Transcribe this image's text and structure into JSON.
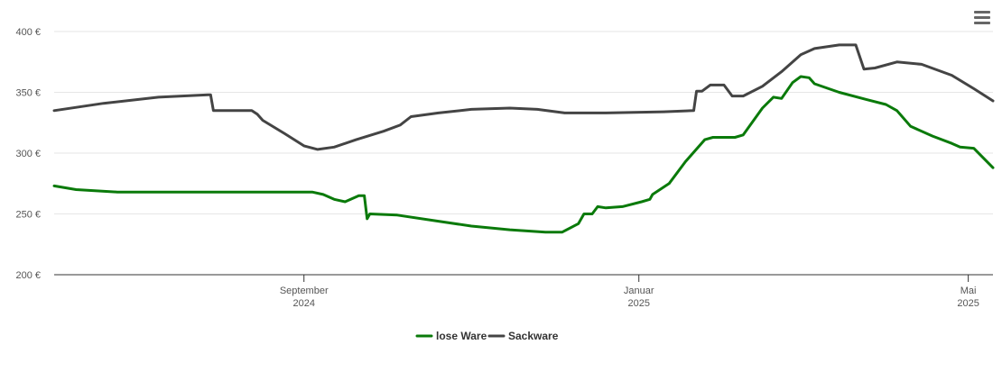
{
  "menu": {
    "icon": "hamburger-menu-icon"
  },
  "chart_data": {
    "type": "line",
    "ylim": [
      200,
      400
    ],
    "y_ticks": [
      200,
      250,
      300,
      350,
      400
    ],
    "y_tick_labels": [
      "200 €",
      "250 €",
      "300 €",
      "350 €",
      "400 €"
    ],
    "x_ticks": [
      {
        "date": "2024-09-01",
        "line1": "September",
        "line2": "2024"
      },
      {
        "date": "2025-01-01",
        "line1": "Januar",
        "line2": "2025"
      },
      {
        "date": "2025-05-01",
        "line1": "Mai",
        "line2": "2025"
      }
    ],
    "xlim": [
      "2024-06-02",
      "2025-05-10"
    ],
    "grid": true,
    "legend_position": "bottom-center",
    "series": [
      {
        "name": "lose Ware",
        "color": "#0a7a0a",
        "points": [
          [
            "2024-06-02",
            273
          ],
          [
            "2024-06-10",
            270
          ],
          [
            "2024-06-25",
            268
          ],
          [
            "2024-07-15",
            268
          ],
          [
            "2024-08-15",
            268
          ],
          [
            "2024-08-28",
            268
          ],
          [
            "2024-09-04",
            268
          ],
          [
            "2024-09-08",
            266
          ],
          [
            "2024-09-12",
            262
          ],
          [
            "2024-09-16",
            260
          ],
          [
            "2024-09-21",
            265
          ],
          [
            "2024-09-23",
            265
          ],
          [
            "2024-09-24",
            246
          ],
          [
            "2024-09-25",
            250
          ],
          [
            "2024-10-05",
            249
          ],
          [
            "2024-10-20",
            244
          ],
          [
            "2024-11-01",
            240
          ],
          [
            "2024-11-15",
            237
          ],
          [
            "2024-11-28",
            235
          ],
          [
            "2024-12-04",
            235
          ],
          [
            "2024-12-10",
            242
          ],
          [
            "2024-12-12",
            250
          ],
          [
            "2024-12-15",
            250
          ],
          [
            "2024-12-17",
            256
          ],
          [
            "2024-12-20",
            255
          ],
          [
            "2024-12-26",
            256
          ],
          [
            "2025-01-02",
            260
          ],
          [
            "2025-01-05",
            262
          ],
          [
            "2025-01-06",
            266
          ],
          [
            "2025-01-12",
            275
          ],
          [
            "2025-01-18",
            293
          ],
          [
            "2025-01-25",
            311
          ],
          [
            "2025-01-28",
            313
          ],
          [
            "2025-02-05",
            313
          ],
          [
            "2025-02-08",
            315
          ],
          [
            "2025-02-15",
            337
          ],
          [
            "2025-02-19",
            346
          ],
          [
            "2025-02-22",
            345
          ],
          [
            "2025-02-26",
            358
          ],
          [
            "2025-03-01",
            363
          ],
          [
            "2025-03-04",
            362
          ],
          [
            "2025-03-06",
            357
          ],
          [
            "2025-03-15",
            350
          ],
          [
            "2025-03-25",
            344
          ],
          [
            "2025-04-01",
            340
          ],
          [
            "2025-04-05",
            335
          ],
          [
            "2025-04-10",
            322
          ],
          [
            "2025-04-18",
            314
          ],
          [
            "2025-04-25",
            308
          ],
          [
            "2025-04-28",
            305
          ],
          [
            "2025-05-03",
            304
          ],
          [
            "2025-05-10",
            288
          ]
        ]
      },
      {
        "name": "Sackware",
        "color": "#444444",
        "points": [
          [
            "2024-06-02",
            335
          ],
          [
            "2024-06-20",
            341
          ],
          [
            "2024-07-10",
            346
          ],
          [
            "2024-07-28",
            348
          ],
          [
            "2024-07-29",
            348
          ],
          [
            "2024-07-30",
            335
          ],
          [
            "2024-08-05",
            335
          ],
          [
            "2024-08-13",
            335
          ],
          [
            "2024-08-15",
            332
          ],
          [
            "2024-08-17",
            327
          ],
          [
            "2024-08-25",
            316
          ],
          [
            "2024-09-01",
            306
          ],
          [
            "2024-09-06",
            303
          ],
          [
            "2024-09-12",
            305
          ],
          [
            "2024-09-20",
            311
          ],
          [
            "2024-09-30",
            318
          ],
          [
            "2024-10-06",
            323
          ],
          [
            "2024-10-10",
            330
          ],
          [
            "2024-10-20",
            333
          ],
          [
            "2024-11-01",
            336
          ],
          [
            "2024-11-15",
            337
          ],
          [
            "2024-11-25",
            336
          ],
          [
            "2024-12-05",
            333
          ],
          [
            "2024-12-20",
            333
          ],
          [
            "2025-01-10",
            334
          ],
          [
            "2025-01-21",
            335
          ],
          [
            "2025-01-22",
            351
          ],
          [
            "2025-01-24",
            351
          ],
          [
            "2025-01-27",
            356
          ],
          [
            "2025-02-01",
            356
          ],
          [
            "2025-02-04",
            347
          ],
          [
            "2025-02-08",
            347
          ],
          [
            "2025-02-15",
            355
          ],
          [
            "2025-02-22",
            367
          ],
          [
            "2025-03-01",
            381
          ],
          [
            "2025-03-06",
            386
          ],
          [
            "2025-03-15",
            389
          ],
          [
            "2025-03-21",
            389
          ],
          [
            "2025-03-24",
            369
          ],
          [
            "2025-03-28",
            370
          ],
          [
            "2025-04-05",
            375
          ],
          [
            "2025-04-14",
            373
          ],
          [
            "2025-04-25",
            364
          ],
          [
            "2025-05-03",
            353
          ],
          [
            "2025-05-10",
            343
          ]
        ]
      }
    ]
  }
}
